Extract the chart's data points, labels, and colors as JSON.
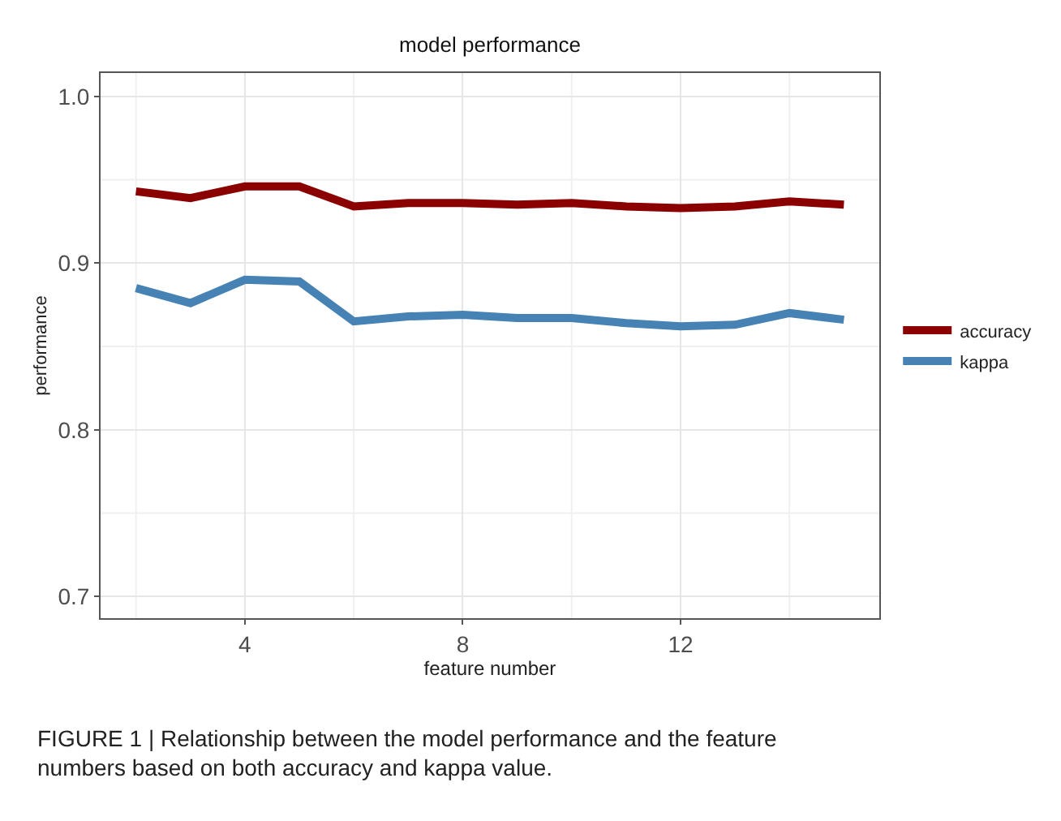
{
  "chart_data": {
    "type": "line",
    "title": "model performance",
    "xlabel": "feature number",
    "ylabel": "performance",
    "x": [
      2,
      3,
      4,
      5,
      6,
      7,
      8,
      9,
      10,
      11,
      12,
      13,
      14,
      15
    ],
    "series": [
      {
        "name": "accuracy",
        "color": "#8b0000",
        "values": [
          0.943,
          0.939,
          0.946,
          0.946,
          0.934,
          0.936,
          0.936,
          0.935,
          0.936,
          0.934,
          0.933,
          0.934,
          0.937,
          0.935
        ]
      },
      {
        "name": "kappa",
        "color": "#4682b4",
        "values": [
          0.885,
          0.876,
          0.89,
          0.889,
          0.865,
          0.868,
          0.869,
          0.867,
          0.867,
          0.864,
          0.862,
          0.863,
          0.87,
          0.866
        ]
      }
    ],
    "xlim": [
      1.35,
      15.65
    ],
    "ylim": [
      0.687,
      1.014
    ],
    "xticks": [
      4,
      8,
      12
    ],
    "yticks": [
      {
        "value": 0.7,
        "label": "0.7"
      },
      {
        "value": 0.8,
        "label": "0.8"
      },
      {
        "value": 0.9,
        "label": "0.9"
      },
      {
        "value": 1.0,
        "label": "1.0"
      }
    ],
    "grid": true,
    "legend": "right",
    "line_style": "solid",
    "marker": "none",
    "annotations": [
      "FIGURE 1 | Relationship between the model performance and the feature numbers based on both accuracy and kappa value."
    ]
  }
}
